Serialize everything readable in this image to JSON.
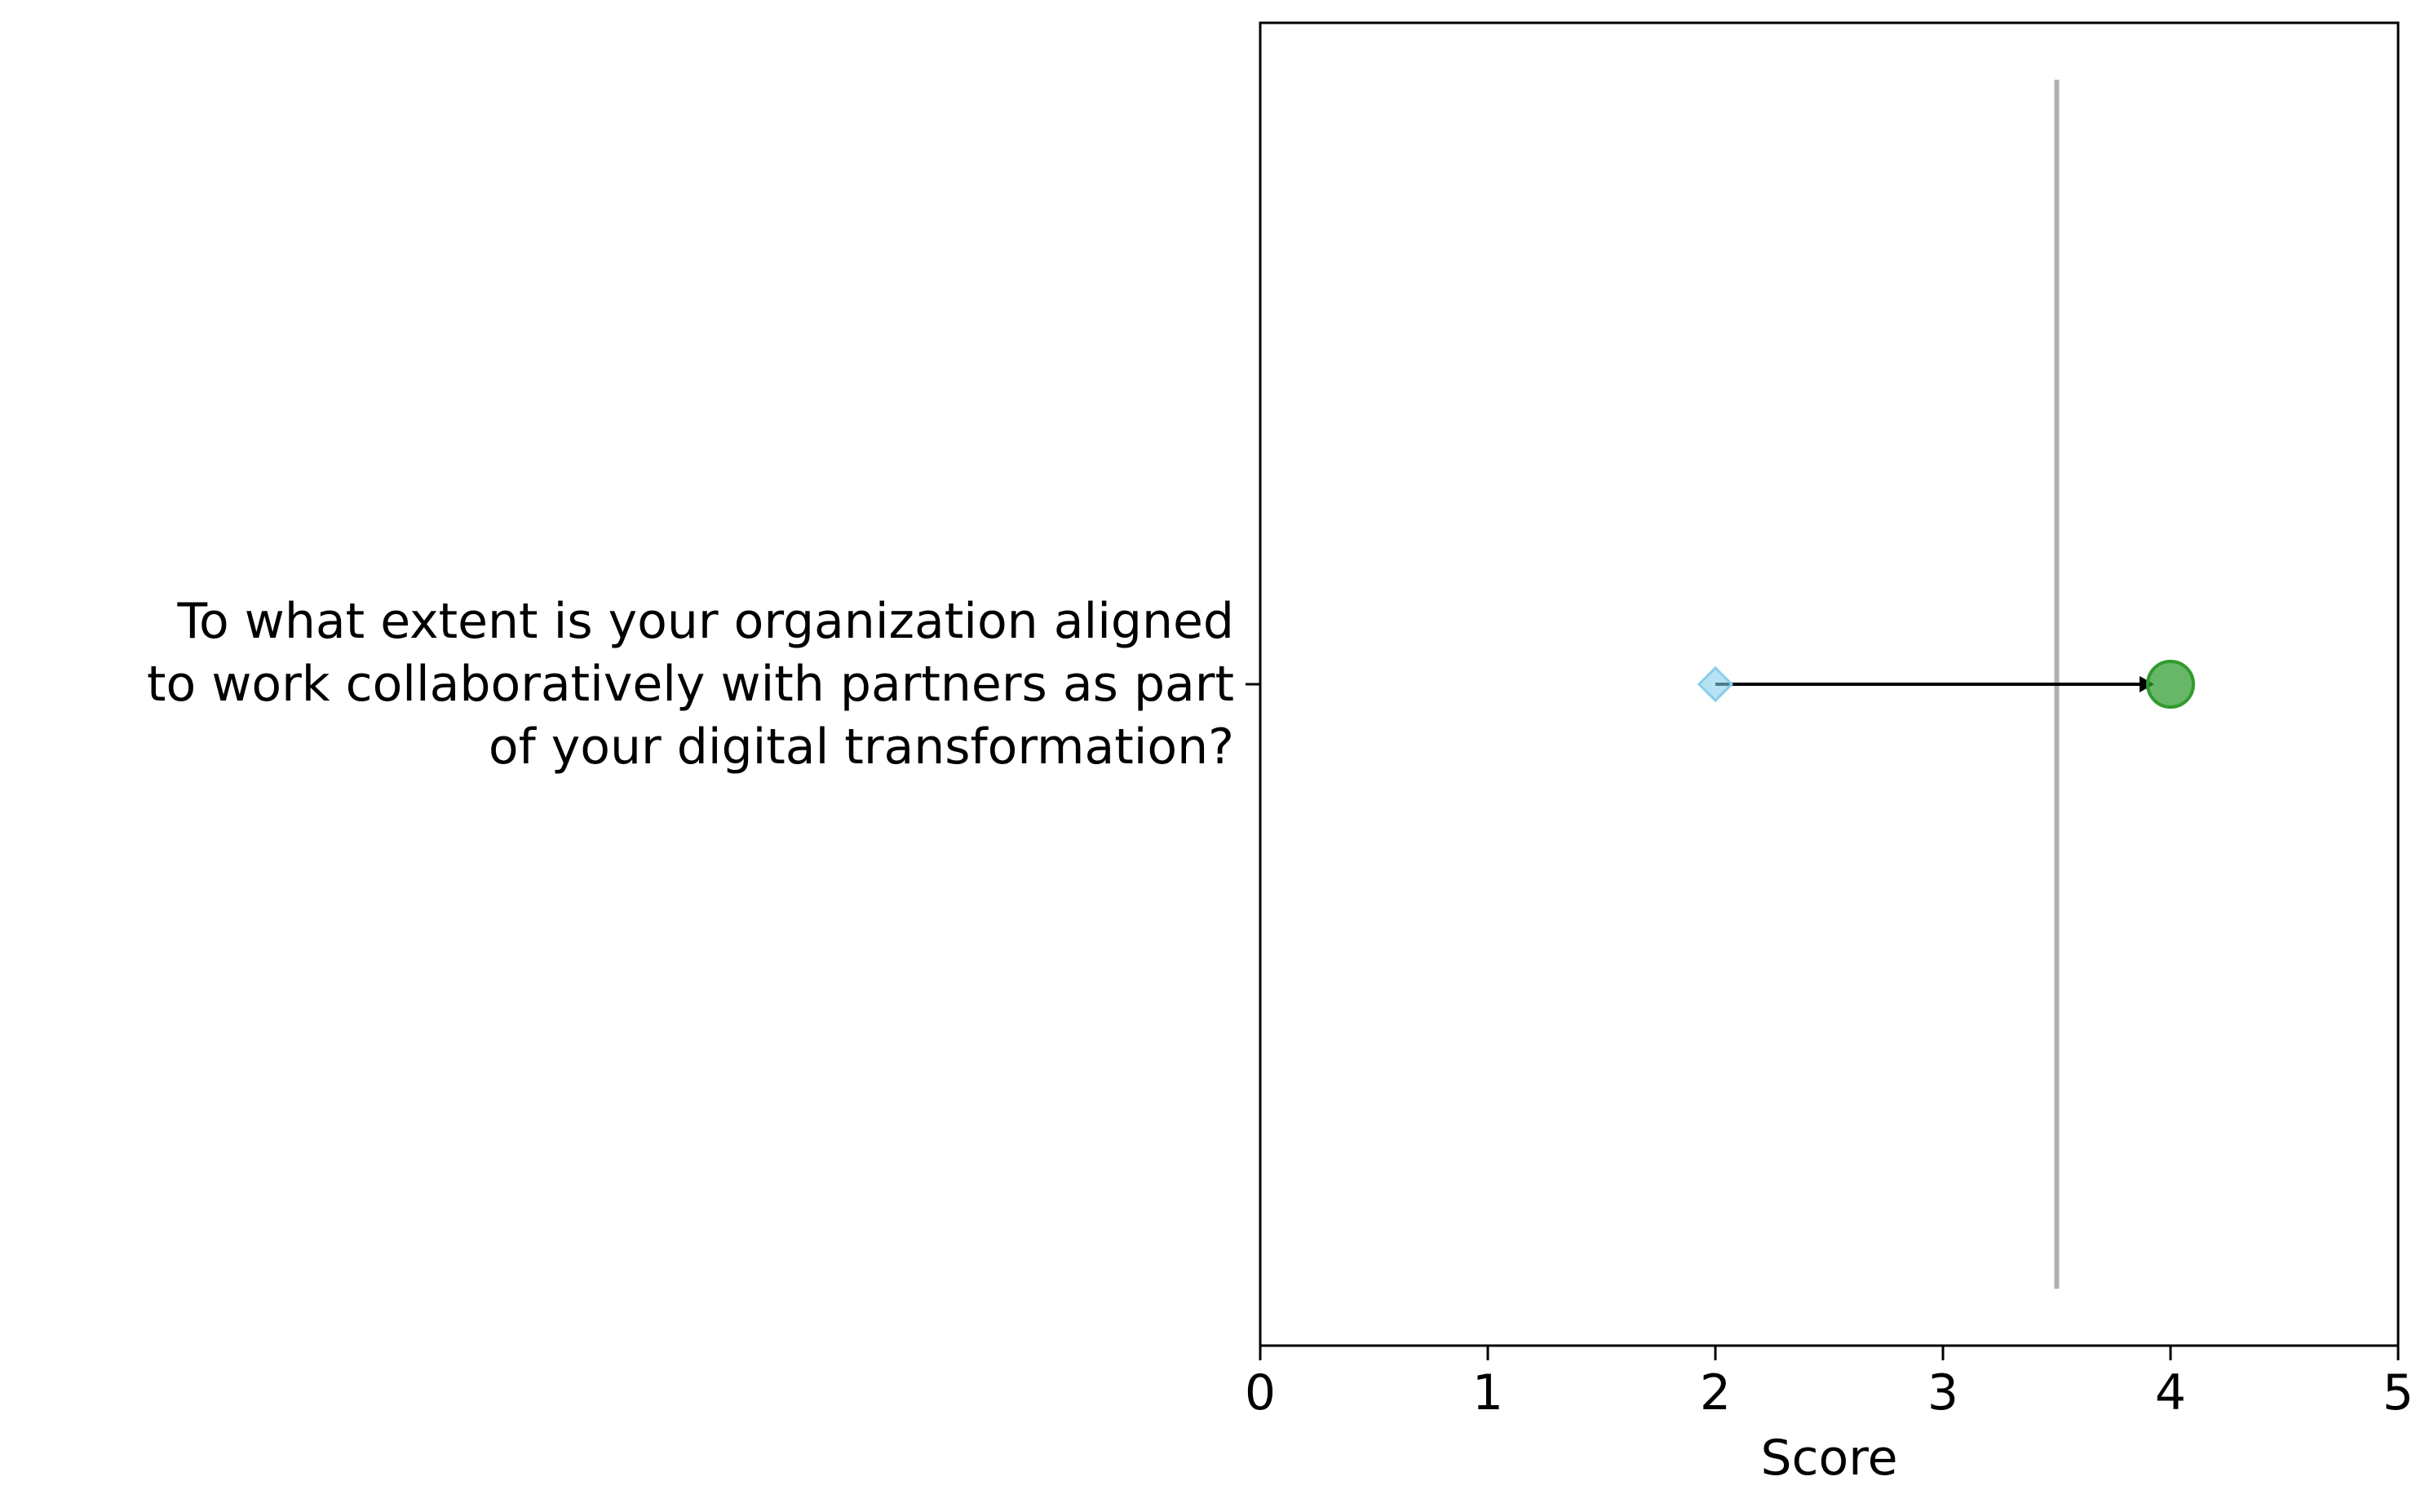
{
  "chart_data": {
    "type": "dumbbell",
    "categories": [
      "To what extent is your organization aligned\nto work collaboratively with partners as part\nof your digital transformation?"
    ],
    "series": [
      {
        "values": [
          2
        ],
        "marker": "diamond",
        "color": "#87ceeb"
      },
      {
        "values": [
          4
        ],
        "marker": "circle",
        "color": "#2e9b2e"
      }
    ],
    "arrows": [
      {
        "category": 0,
        "from": 2,
        "to": 4,
        "color": "#000000"
      }
    ],
    "reference_lines": [
      {
        "orientation": "vertical",
        "x": 3.5,
        "color": "#b0b0b0"
      }
    ],
    "xlabel": "Score",
    "ylabel": "",
    "title": "",
    "xlim": [
      0,
      5
    ],
    "xticks": [
      0,
      1,
      2,
      3,
      4,
      5
    ],
    "grid": false,
    "legend": "none"
  }
}
